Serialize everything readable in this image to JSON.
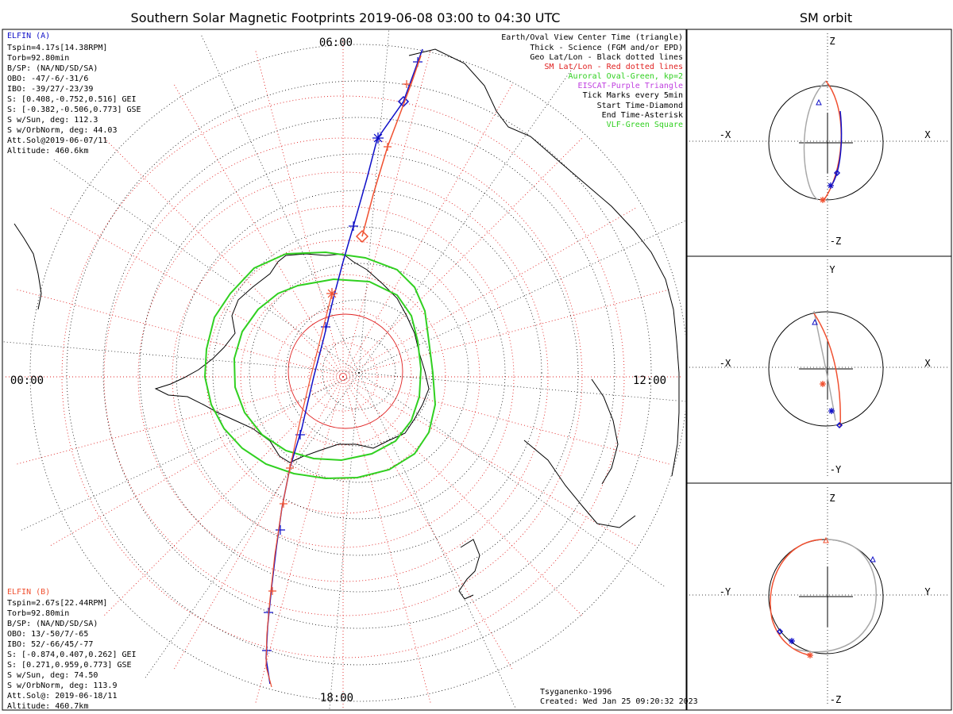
{
  "title": "Southern Solar Magnetic Footprints 2019-06-08 03:00 to 04:30 UTC",
  "orbit_title": "SM orbit",
  "colors": {
    "elfin_a": "#1010c8",
    "elfin_b": "#f05030",
    "sm_grid": "#e02020",
    "geo_grid": "#000000",
    "aurora": "#30d020",
    "eiscat": "#c040e0",
    "vlf": "#30d020",
    "track_grey": "#a8a8a8"
  },
  "clock": {
    "top": "06:00",
    "left": "00:00",
    "right": "12:00",
    "bottom": "18:00"
  },
  "info_a": {
    "name": "ELFIN (A)",
    "lines": [
      "Tspin=4.17s[14.38RPM]",
      "Torb=92.80min",
      "B/SP: (NA/ND/SD/SA)",
      "OBO: -47/-6/-31/6",
      "IBO: -39/27/-23/39",
      "S: [0.408,-0.752,0.516] GEI",
      "S: [-0.382,-0.506,0.773] GSE",
      "S w/Sun, deg: 112.3",
      "S w/OrbNorm, deg: 44.03",
      "Att.Sol@2019-06-07/11",
      "Altitude: 460.6km"
    ]
  },
  "info_b": {
    "name": "ELFIN (B)",
    "lines": [
      "Tspin=2.67s[22.44RPM]",
      "Torb=92.80min",
      "B/SP: (NA/ND/SD/SA)",
      "OBO: 13/-50/7/-65",
      "IBO: 52/-66/45/-77",
      "S: [-0.874,0.407,0.262] GEI",
      "S: [0.271,0.959,0.773] GSE",
      "S w/Sun, deg: 74.50",
      "S w/OrbNorm, deg: 113.9",
      "Att.Sol@: 2019-06-18/11",
      "Altitude: 460.7km"
    ]
  },
  "legend": [
    {
      "text": "Earth/Oval View Center Time (triangle)",
      "color": "#000000"
    },
    {
      "text": "Thick - Science (FGM and/or EPD)",
      "color": "#000000"
    },
    {
      "text": "Geo Lat/Lon - Black dotted lines",
      "color": "#000000"
    },
    {
      "text": "SM Lat/Lon - Red dotted lines",
      "color": "#e02020"
    },
    {
      "text": "Auroral Oval-Green, kp=2",
      "color": "#30d020"
    },
    {
      "text": "EISCAT-Purple Triangle",
      "color": "#c040e0"
    },
    {
      "text": "Tick Marks every 5min",
      "color": "#000000"
    },
    {
      "text": "Start Time-Diamond",
      "color": "#000000"
    },
    {
      "text": "End Time-Asterisk",
      "color": "#000000"
    },
    {
      "text": "VLF-Green Square",
      "color": "#30d020"
    }
  ],
  "credit": "Tsyganenko-1996",
  "created": "Created: Wed Jan 25 09:20:32 2023",
  "panels": [
    {
      "top": "Z",
      "bottom": "-Z",
      "left": "-X",
      "right": "X"
    },
    {
      "top": "Y",
      "bottom": "-Y",
      "left": "-X",
      "right": "X"
    },
    {
      "top": "Z",
      "bottom": "-Z",
      "left": "-Y",
      "right": "Y"
    }
  ]
}
